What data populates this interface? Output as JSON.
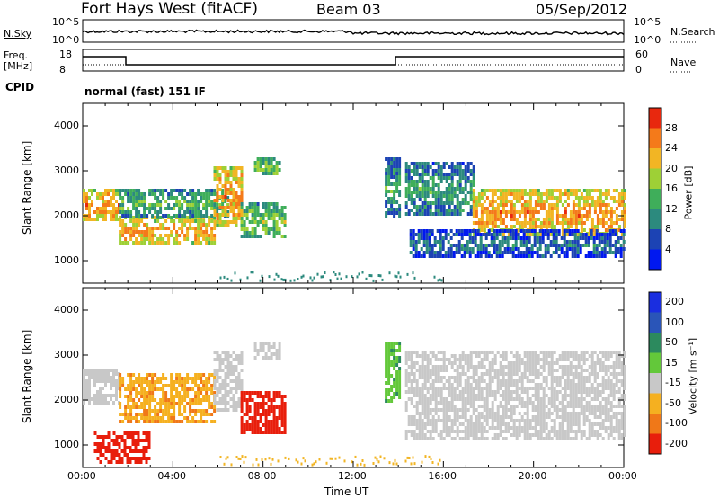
{
  "header": {
    "station": "Fort Hays West (fitACF)",
    "beam": "Beam 03",
    "date": "05/Sep/2012"
  },
  "top_panels": {
    "nsky_label": "N.Sky",
    "nsky_ticks": [
      "10^5",
      "10^0"
    ],
    "nsearch_label": "N.Search",
    "nsearch_ticks": [
      "10^5",
      "10^0"
    ],
    "freq_label": "Freq.",
    "freq_unit": "[MHz]",
    "freq_ticks": [
      "18",
      "8"
    ],
    "nave_label": "Nave",
    "nave_ticks": [
      "60",
      "0"
    ],
    "cpid_label": "CPID",
    "cpid_text": "normal (fast) 151 IF"
  },
  "chart_data": [
    {
      "type": "heatmap",
      "name": "power",
      "ylabel": "Slant Range [km]",
      "xlabel": "Time UT",
      "yticks": [
        "1000",
        "2000",
        "3000",
        "4000"
      ],
      "ylim": [
        500,
        4500
      ],
      "xticks": [
        "00:00",
        "04:00",
        "08:00",
        "12:00",
        "16:00",
        "20:00",
        "00:00"
      ],
      "xlim": [
        0,
        24
      ],
      "colorbar": {
        "label": "Power [dB]",
        "ticks": [
          "4",
          "8",
          "12",
          "16",
          "20",
          "24",
          "28"
        ],
        "colors": [
          "#0018f0",
          "#1c43b4",
          "#2c8a7e",
          "#3fae5a",
          "#9ed036",
          "#f2b524",
          "#f47a1a",
          "#e8280e"
        ]
      },
      "echo_regions": [
        {
          "t0": 0.0,
          "t1": 1.6,
          "r0": 1900,
          "r1": 2600,
          "level": 22
        },
        {
          "t0": 1.6,
          "t1": 5.8,
          "r0": 1400,
          "r1": 2000,
          "level": 21
        },
        {
          "t0": 1.6,
          "t1": 6.5,
          "r0": 2000,
          "r1": 2600,
          "level": 12
        },
        {
          "t0": 5.8,
          "t1": 7.0,
          "r0": 1800,
          "r1": 3100,
          "level": 22
        },
        {
          "t0": 7.0,
          "t1": 9.0,
          "r0": 1500,
          "r1": 2300,
          "level": 14
        },
        {
          "t0": 7.6,
          "t1": 8.7,
          "r0": 2900,
          "r1": 3300,
          "level": 14
        },
        {
          "t0": 13.4,
          "t1": 14.1,
          "r0": 2000,
          "r1": 3300,
          "level": 10
        },
        {
          "t0": 14.3,
          "t1": 17.3,
          "r0": 2000,
          "r1": 3200,
          "level": 10
        },
        {
          "t0": 17.3,
          "t1": 24.0,
          "r0": 1600,
          "r1": 2600,
          "level": 22
        },
        {
          "t0": 14.5,
          "t1": 24.0,
          "r0": 1100,
          "r1": 1700,
          "level": 6
        }
      ]
    },
    {
      "type": "heatmap",
      "name": "velocity",
      "ylabel": "Slant Range [km]",
      "xlabel": "Time UT",
      "yticks": [
        "1000",
        "2000",
        "3000",
        "4000"
      ],
      "ylim": [
        500,
        4500
      ],
      "xticks": [
        "00:00",
        "04:00",
        "08:00",
        "12:00",
        "16:00",
        "20:00",
        "00:00"
      ],
      "xlim": [
        0,
        24
      ],
      "colorbar": {
        "label": "Velocity [m s⁻¹]",
        "ticks": [
          "200",
          "100",
          "50",
          "15",
          "-15",
          "-50",
          "-100",
          "-200"
        ],
        "colors": [
          "#1a2ee0",
          "#2a55b8",
          "#2c8a5e",
          "#63c83a",
          "#c8c8c8",
          "#f5b020",
          "#f07818",
          "#e81e0c"
        ]
      },
      "echo_regions": [
        {
          "t0": 0.0,
          "t1": 1.6,
          "r0": 1900,
          "r1": 2700,
          "level": 0
        },
        {
          "t0": 1.6,
          "t1": 5.8,
          "r0": 1500,
          "r1": 2600,
          "level": -40
        },
        {
          "t0": 5.8,
          "t1": 7.0,
          "r0": 1800,
          "r1": 3100,
          "level": 0
        },
        {
          "t0": 7.0,
          "t1": 9.0,
          "r0": 1300,
          "r1": 2200,
          "level": -250
        },
        {
          "t0": 7.6,
          "t1": 8.7,
          "r0": 2900,
          "r1": 3300,
          "level": 0
        },
        {
          "t0": 13.4,
          "t1": 14.1,
          "r0": 2000,
          "r1": 3300,
          "level": 40
        },
        {
          "t0": 14.3,
          "t1": 24.0,
          "r0": 1100,
          "r1": 3100,
          "level": 0
        },
        {
          "t0": 0.5,
          "t1": 3.0,
          "r0": 600,
          "r1": 1300,
          "level": -250
        }
      ]
    }
  ]
}
